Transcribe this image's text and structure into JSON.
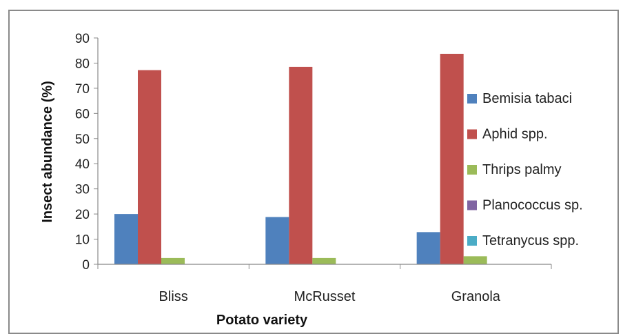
{
  "chart_data": {
    "type": "bar",
    "title": "",
    "xlabel": "Potato variety",
    "ylabel": "Insect abundance (%)",
    "ylim": [
      0,
      90
    ],
    "yticks": [
      0,
      10,
      20,
      30,
      40,
      50,
      60,
      70,
      80,
      90
    ],
    "categories": [
      "Bliss",
      "McRusset",
      "Granola"
    ],
    "legend_position": "right",
    "series": [
      {
        "name": "Bemisia tabaci",
        "color": "#4f81bd",
        "values": [
          20,
          18.8,
          12.8
        ]
      },
      {
        "name": "Aphid spp.",
        "color": "#c0504d",
        "values": [
          77.2,
          78.5,
          83.7
        ]
      },
      {
        "name": "Thrips palmy",
        "color": "#9bbb59",
        "values": [
          2.5,
          2.5,
          3.2
        ]
      },
      {
        "name": "Planococcus sp.",
        "color": "#8064a2",
        "values": [
          0,
          0,
          0
        ]
      },
      {
        "name": "Tetranycus spp.",
        "color": "#4bacc6",
        "values": [
          0,
          0,
          0
        ]
      }
    ]
  }
}
